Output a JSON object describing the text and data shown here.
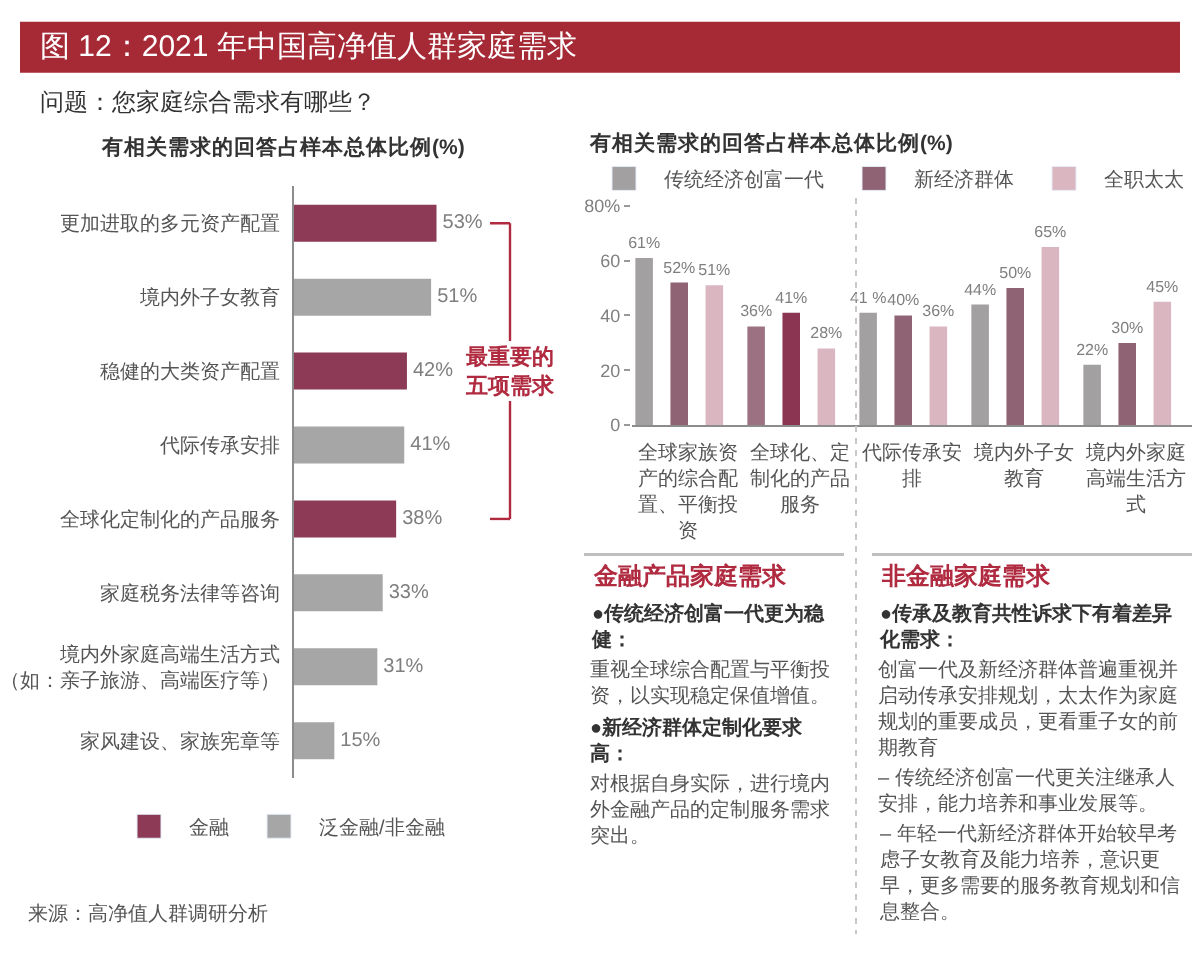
{
  "chart_data": [
    {
      "type": "other",
      "title": "图 12：2021 年中国高净值人群家庭需求",
      "subtitle": "问题：您家庭综合需求有哪些？",
      "annotations": [
        "来源：高净值人群调研分析"
      ]
    },
    {
      "type": "bar",
      "orientation": "horizontal",
      "title": "有相关需求的回答占样本总体比例(%)",
      "categories": [
        "更加进取的多元资产配置",
        "境内外子女教育",
        "稳健的大类资产配置",
        "代际传承安排",
        "全球化定制化的产品服务",
        "家庭税务法律等咨询",
        "境内外家庭高端生活方式（如：亲子旅游、高端医疗等）",
        "家风建设、家族宪章等"
      ],
      "series": [
        {
          "name": "金融",
          "color": "#8c3a56",
          "values": [
            53,
            null,
            42,
            null,
            38,
            null,
            null,
            null
          ],
          "value_labels": [
            "53%",
            null,
            "42%",
            null,
            "38%",
            null,
            null,
            null
          ]
        },
        {
          "name": "泛金融/非金融",
          "color": "#a6a6a6",
          "values": [
            null,
            51,
            null,
            41,
            null,
            33,
            31,
            15
          ],
          "value_labels": [
            null,
            "51%",
            null,
            "41%",
            null,
            "33%",
            "31%",
            "15%"
          ]
        }
      ],
      "annotations": [
        "最重要的五项需求"
      ],
      "tick_labels": "y",
      "legend": "bottom"
    },
    {
      "type": "bar",
      "title": "有相关需求的回答占样本总体比例(%)",
      "categories": [
        "全球家族资产的综合配置、平衡投资",
        "全球化、定制化的产品服务",
        "代际传承安排",
        "境内外子女教育",
        "境内外家庭高端生活方式"
      ],
      "series": [
        {
          "name": "传统经济创富一代",
          "color": "#a3a0a1",
          "colors": [
            "#a3a0a1",
            "#9c7283",
            "#a3a0a1",
            "#a3a0a1",
            "#a3a0a1"
          ],
          "values": [
            61,
            36,
            41,
            44,
            22
          ],
          "value_labels": [
            "61%",
            "36%",
            "41 %",
            "44%",
            "22%"
          ]
        },
        {
          "name": "新经济群体",
          "color": "#8f6373",
          "colors": [
            "#8f6373",
            "#8b3552",
            "#8f6373",
            "#8f6373",
            "#8f6373"
          ],
          "values": [
            52,
            41,
            40,
            50,
            30
          ],
          "value_labels": [
            "52%",
            "41%",
            "40%",
            "50%",
            "30%"
          ]
        },
        {
          "name": "全职太太",
          "color": "#dab6c1",
          "values": [
            51,
            28,
            36,
            65,
            45
          ],
          "value_labels": [
            "51%",
            "28%",
            "36%",
            "65%",
            "45%"
          ]
        }
      ],
      "ylim": [
        0,
        80
      ],
      "yticks": [
        0,
        20,
        40,
        60,
        {
          "value": 80,
          "label": "80%"
        }
      ],
      "legend": "top right"
    },
    {
      "type": "other",
      "title": "金融产品家庭需求",
      "annotations": [
        "●传统经济创富一代更为稳健：",
        "重视全球综合配置与平衡投资，以实现稳定保值增值。",
        "●新经济群体定制化要求高：",
        "对根据自身实际，进行境内外金融产品的定制服务需求突出。"
      ]
    },
    {
      "type": "other",
      "title": "非金融家庭需求",
      "annotations": [
        "●传承及教育共性诉求下有着差异化需求：",
        "创富一代及新经济群体普遍重视并启动传承安排规划，太太作为家庭规划的重要成员，更看重子女的前期教育",
        "– 传统经济创富一代更关注继承人安排，能力培养和事业发展等。",
        "– 年轻一代新经济群体开始较早考虑子女教育及能力培养，意识更早，更多需要的服务教育规划和信息整合。"
      ]
    }
  ]
}
